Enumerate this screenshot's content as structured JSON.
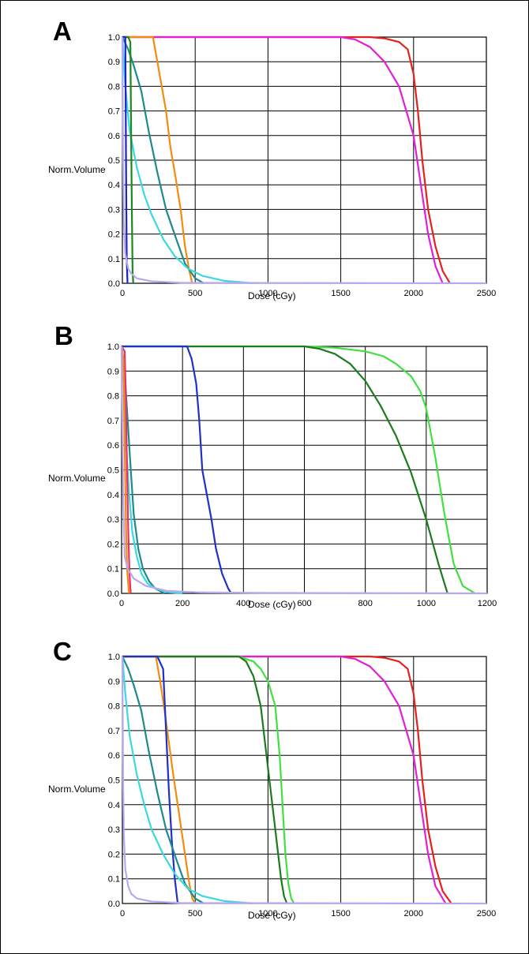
{
  "chart_data": [
    {
      "panel_label": "A",
      "type": "line",
      "xlabel": "Dose (cGy)",
      "ylabel": "Norm.Volume",
      "xlim": [
        0,
        2500
      ],
      "ylim": [
        0,
        1.0
      ],
      "xticks": [
        0,
        500,
        1000,
        1500,
        2000,
        2500
      ],
      "yticks": [
        0.0,
        0.1,
        0.2,
        0.3,
        0.4,
        0.5,
        0.6,
        0.7,
        0.8,
        0.9,
        1.0
      ],
      "grid": true,
      "series": [
        {
          "color": "#e8201a",
          "x": [
            0,
            1500,
            1700,
            1800,
            1900,
            1960,
            2000,
            2030,
            2060,
            2100,
            2150,
            2200,
            2250
          ],
          "y": [
            1.0,
            1.0,
            1.0,
            0.995,
            0.98,
            0.95,
            0.85,
            0.7,
            0.5,
            0.3,
            0.15,
            0.05,
            0.0
          ]
        },
        {
          "color": "#e020d8",
          "x": [
            0,
            1500,
            1600,
            1700,
            1800,
            1900,
            2000,
            2050,
            2100,
            2150,
            2200
          ],
          "y": [
            1.0,
            1.0,
            0.99,
            0.96,
            0.9,
            0.8,
            0.6,
            0.4,
            0.2,
            0.07,
            0.0
          ]
        },
        {
          "color": "#f28c10",
          "x": [
            0,
            210,
            240,
            270,
            300,
            330,
            360,
            400,
            430,
            460,
            480
          ],
          "y": [
            1.0,
            1.0,
            0.9,
            0.8,
            0.7,
            0.55,
            0.45,
            0.3,
            0.15,
            0.05,
            0.0
          ]
        },
        {
          "color": "#1f8a8a",
          "x": [
            0,
            40,
            80,
            130,
            180,
            240,
            300,
            370,
            430,
            500,
            560
          ],
          "y": [
            1.0,
            0.95,
            0.88,
            0.78,
            0.62,
            0.45,
            0.3,
            0.18,
            0.08,
            0.02,
            0.0
          ]
        },
        {
          "color": "#3ad8e0",
          "x": [
            0,
            20,
            50,
            100,
            150,
            200,
            280,
            360,
            450,
            550,
            700,
            900
          ],
          "y": [
            1.0,
            0.8,
            0.62,
            0.47,
            0.36,
            0.28,
            0.18,
            0.11,
            0.06,
            0.03,
            0.01,
            0.0
          ]
        },
        {
          "color": "#1a8a20",
          "x": [
            0,
            40,
            55,
            60,
            65,
            70,
            75
          ],
          "y": [
            1.0,
            1.0,
            0.98,
            0.6,
            0.3,
            0.05,
            0.0
          ]
        },
        {
          "color": "#1a24c8",
          "x": [
            0,
            20,
            25,
            30,
            35
          ],
          "y": [
            1.0,
            1.0,
            0.5,
            0.1,
            0.0
          ]
        },
        {
          "color": "#b8a8f0",
          "x": [
            0,
            5,
            10,
            20,
            40,
            60,
            100,
            200,
            400,
            2500
          ],
          "y": [
            1.0,
            0.5,
            0.25,
            0.12,
            0.06,
            0.04,
            0.02,
            0.008,
            0.002,
            0.0
          ]
        }
      ]
    },
    {
      "panel_label": "B",
      "type": "line",
      "xlabel": "Dose (cGy)",
      "ylabel": "Norm.Volume",
      "xlim": [
        0,
        1200
      ],
      "ylim": [
        0,
        1.0
      ],
      "xticks": [
        0,
        200,
        400,
        600,
        800,
        1000,
        1200
      ],
      "yticks": [
        0.0,
        0.1,
        0.2,
        0.3,
        0.4,
        0.5,
        0.6,
        0.7,
        0.8,
        0.9,
        1.0
      ],
      "grid": true,
      "series": [
        {
          "color": "#40e040",
          "x": [
            0,
            600,
            700,
            800,
            860,
            900,
            950,
            980,
            1000,
            1030,
            1060,
            1090,
            1120,
            1160
          ],
          "y": [
            1.0,
            1.0,
            0.995,
            0.98,
            0.96,
            0.93,
            0.88,
            0.82,
            0.75,
            0.55,
            0.32,
            0.12,
            0.03,
            0.0
          ]
        },
        {
          "color": "#1e7a1e",
          "x": [
            0,
            600,
            650,
            700,
            750,
            800,
            850,
            900,
            950,
            1000,
            1040,
            1070
          ],
          "y": [
            1.0,
            1.0,
            0.99,
            0.97,
            0.93,
            0.86,
            0.76,
            0.64,
            0.49,
            0.3,
            0.12,
            0.0
          ]
        },
        {
          "color": "#2030c8",
          "x": [
            0,
            215,
            230,
            245,
            255,
            265,
            280,
            295,
            310,
            330,
            350,
            360
          ],
          "y": [
            1.0,
            1.0,
            0.95,
            0.85,
            0.7,
            0.5,
            0.4,
            0.3,
            0.18,
            0.08,
            0.02,
            0.0
          ]
        },
        {
          "color": "#1f8a8a",
          "x": [
            0,
            10,
            20,
            30,
            40,
            55,
            70,
            90,
            110,
            140
          ],
          "y": [
            1.0,
            0.9,
            0.7,
            0.5,
            0.32,
            0.18,
            0.1,
            0.05,
            0.02,
            0.0
          ]
        },
        {
          "color": "#3ad8e0",
          "x": [
            0,
            8,
            15,
            25,
            35,
            50,
            65,
            85,
            110,
            150,
            200
          ],
          "y": [
            1.0,
            0.85,
            0.6,
            0.4,
            0.25,
            0.15,
            0.08,
            0.04,
            0.02,
            0.005,
            0.0
          ]
        },
        {
          "color": "#e83070",
          "x": [
            0,
            10,
            14,
            18,
            22,
            26,
            30
          ],
          "y": [
            1.0,
            0.98,
            0.8,
            0.5,
            0.25,
            0.08,
            0.0
          ]
        },
        {
          "color": "#f28c10",
          "x": [
            0,
            6,
            10,
            14,
            18,
            24
          ],
          "y": [
            1.0,
            0.95,
            0.6,
            0.3,
            0.1,
            0.0
          ]
        },
        {
          "color": "#b8a8f0",
          "x": [
            0,
            5,
            10,
            20,
            40,
            80,
            150,
            250,
            450,
            1200
          ],
          "y": [
            1.0,
            0.4,
            0.15,
            0.1,
            0.06,
            0.03,
            0.01,
            0.004,
            0.002,
            0.0
          ]
        }
      ]
    },
    {
      "panel_label": "C",
      "type": "line",
      "xlabel": "Dose (cGy)",
      "ylabel": "Norm.Volume",
      "xlim": [
        0,
        2500
      ],
      "ylim": [
        0,
        1.0
      ],
      "xticks": [
        0,
        500,
        1000,
        1500,
        2000,
        2500
      ],
      "yticks": [
        0.0,
        0.1,
        0.2,
        0.3,
        0.4,
        0.5,
        0.6,
        0.7,
        0.8,
        0.9,
        1.0
      ],
      "grid": true,
      "series": [
        {
          "color": "#e8201a",
          "x": [
            0,
            1500,
            1700,
            1800,
            1900,
            1960,
            2000,
            2030,
            2060,
            2100,
            2150,
            2200,
            2260
          ],
          "y": [
            1.0,
            1.0,
            1.0,
            0.995,
            0.98,
            0.95,
            0.85,
            0.7,
            0.5,
            0.3,
            0.15,
            0.05,
            0.0
          ]
        },
        {
          "color": "#e020d8",
          "x": [
            0,
            1500,
            1600,
            1700,
            1800,
            1900,
            2000,
            2050,
            2100,
            2150,
            2220
          ],
          "y": [
            1.0,
            1.0,
            0.99,
            0.96,
            0.9,
            0.8,
            0.6,
            0.4,
            0.2,
            0.07,
            0.0
          ]
        },
        {
          "color": "#40e040",
          "x": [
            0,
            800,
            900,
            950,
            1000,
            1050,
            1080,
            1100,
            1120,
            1140,
            1160,
            1180
          ],
          "y": [
            1.0,
            1.0,
            0.98,
            0.95,
            0.9,
            0.8,
            0.6,
            0.4,
            0.2,
            0.08,
            0.02,
            0.0
          ]
        },
        {
          "color": "#1e7a1e",
          "x": [
            0,
            800,
            850,
            900,
            950,
            980,
            1010,
            1040,
            1070,
            1090,
            1110,
            1130
          ],
          "y": [
            1.0,
            1.0,
            0.98,
            0.92,
            0.8,
            0.65,
            0.5,
            0.35,
            0.2,
            0.1,
            0.03,
            0.0
          ]
        },
        {
          "color": "#f28c10",
          "x": [
            0,
            230,
            260,
            290,
            320,
            350,
            380,
            410,
            440,
            460,
            480,
            500
          ],
          "y": [
            1.0,
            1.0,
            0.9,
            0.78,
            0.65,
            0.52,
            0.4,
            0.28,
            0.16,
            0.08,
            0.02,
            0.0
          ]
        },
        {
          "color": "#2030c8",
          "x": [
            0,
            240,
            280,
            300,
            320,
            340,
            360,
            380
          ],
          "y": [
            1.0,
            1.0,
            0.95,
            0.7,
            0.45,
            0.25,
            0.1,
            0.0
          ]
        },
        {
          "color": "#1f8a8a",
          "x": [
            0,
            40,
            80,
            130,
            180,
            240,
            300,
            370,
            430,
            500,
            560
          ],
          "y": [
            1.0,
            0.95,
            0.88,
            0.78,
            0.62,
            0.45,
            0.3,
            0.18,
            0.08,
            0.02,
            0.0
          ]
        },
        {
          "color": "#3ad8e0",
          "x": [
            0,
            20,
            50,
            100,
            150,
            200,
            280,
            360,
            450,
            550,
            700,
            900
          ],
          "y": [
            1.0,
            0.85,
            0.68,
            0.52,
            0.4,
            0.3,
            0.2,
            0.12,
            0.06,
            0.03,
            0.01,
            0.0
          ]
        },
        {
          "color": "#b8a8f0",
          "x": [
            0,
            5,
            10,
            20,
            40,
            60,
            100,
            200,
            400,
            2500
          ],
          "y": [
            1.0,
            0.5,
            0.28,
            0.14,
            0.07,
            0.04,
            0.02,
            0.008,
            0.002,
            0.0
          ]
        }
      ]
    }
  ]
}
